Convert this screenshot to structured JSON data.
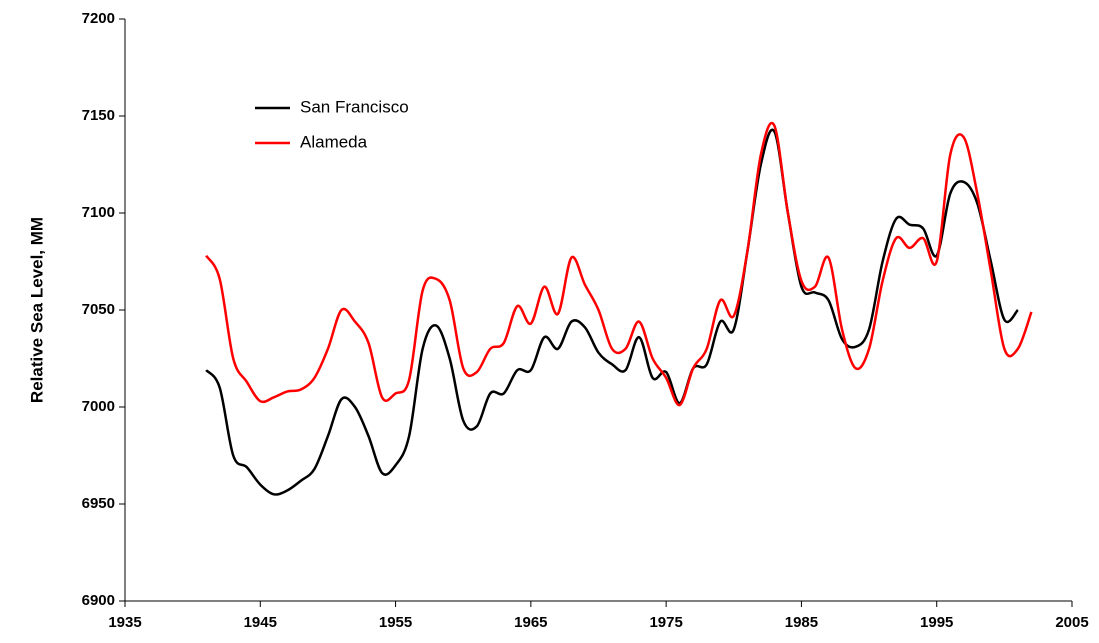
{
  "chart_data": {
    "type": "line",
    "y_label": "Relative Sea Level, MM",
    "x": [
      1941,
      1942,
      1943,
      1944,
      1945,
      1946,
      1947,
      1948,
      1949,
      1950,
      1951,
      1952,
      1953,
      1954,
      1955,
      1956,
      1957,
      1958,
      1959,
      1960,
      1961,
      1962,
      1963,
      1964,
      1965,
      1966,
      1967,
      1968,
      1969,
      1970,
      1971,
      1972,
      1973,
      1974,
      1975,
      1976,
      1977,
      1978,
      1979,
      1980,
      1981,
      1982,
      1983,
      1984,
      1985,
      1986,
      1987,
      1988,
      1989,
      1990,
      1991,
      1992,
      1993,
      1994,
      1995,
      1996,
      1997,
      1998,
      1999,
      2000,
      2001,
      2002
    ],
    "series": [
      {
        "name": "San Francisco",
        "color": "#000000",
        "values": [
          7019,
          7010,
          6975,
          6969,
          6960,
          6955,
          6957,
          6962,
          6968,
          6985,
          7004,
          7000,
          6985,
          6966,
          6970,
          6985,
          7030,
          7042,
          7025,
          6993,
          6990,
          7007,
          7007,
          7019,
          7019,
          7036,
          7030,
          7044,
          7041,
          7028,
          7022,
          7019,
          7036,
          7015,
          7018,
          7002,
          7020,
          7022,
          7044,
          7040,
          7080,
          7125,
          7142,
          7100,
          7062,
          7059,
          7055,
          7035,
          7031,
          7040,
          7075,
          7097,
          7094,
          7092,
          7078,
          7110,
          7116,
          7105,
          7075,
          7045,
          7050,
          null
        ]
      },
      {
        "name": "Alameda",
        "color": "#ff0000",
        "values": [
          7078,
          7066,
          7025,
          7013,
          7003,
          7005,
          7008,
          7009,
          7015,
          7030,
          7050,
          7044,
          7033,
          7005,
          7007,
          7014,
          7060,
          7066,
          7055,
          7020,
          7018,
          7030,
          7033,
          7052,
          7043,
          7062,
          7048,
          7077,
          7063,
          7050,
          7030,
          7030,
          7044,
          7025,
          7015,
          7001,
          7020,
          7030,
          7055,
          7047,
          7080,
          7130,
          7145,
          7100,
          7065,
          7062,
          7077,
          7040,
          7020,
          7030,
          7065,
          7087,
          7082,
          7087,
          7075,
          7130,
          7139,
          7110,
          7070,
          7030,
          7030,
          7049
        ]
      }
    ],
    "xlim": [
      1935,
      2005
    ],
    "xticks": [
      1935,
      1945,
      1955,
      1965,
      1975,
      1985,
      1995,
      2005
    ],
    "ylim": [
      6900,
      7200
    ],
    "yticks": [
      6900,
      6950,
      7000,
      7050,
      7100,
      7150,
      7200
    ],
    "legend": "upper left",
    "grid": false
  }
}
